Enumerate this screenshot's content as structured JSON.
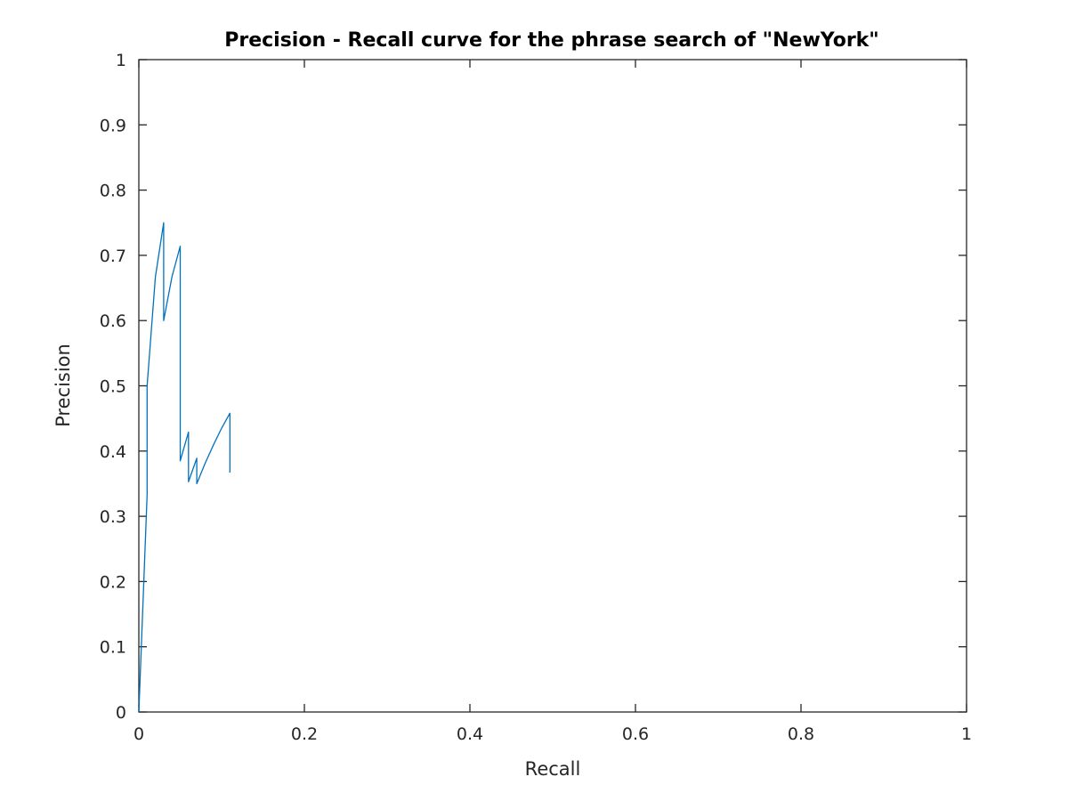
{
  "chart_data": {
    "type": "line",
    "title": "Precision - Recall curve for the phrase search of \"NewYork\"",
    "xlabel": "Recall",
    "ylabel": "Precision",
    "xlim": [
      0,
      1
    ],
    "ylim": [
      0,
      1
    ],
    "xticks": [
      0,
      0.2,
      0.4,
      0.6,
      0.8,
      1
    ],
    "xtick_labels": [
      "0",
      "0.2",
      "0.4",
      "0.6",
      "0.8",
      "1"
    ],
    "yticks": [
      0,
      0.1,
      0.2,
      0.3,
      0.4,
      0.5,
      0.6,
      0.7,
      0.8,
      0.9,
      1
    ],
    "ytick_labels": [
      "0",
      "0.1",
      "0.2",
      "0.3",
      "0.4",
      "0.5",
      "0.6",
      "0.7",
      "0.8",
      "0.9",
      "1"
    ],
    "grid": false,
    "line_color": "#0072BD",
    "series": [
      {
        "x": [
          0,
          0.01,
          0.01,
          0.02,
          0.03,
          0.03,
          0.04,
          0.05,
          0.05,
          0.06,
          0.06,
          0.07,
          0.07,
          0.08,
          0.09,
          0.1,
          0.11,
          0.11
        ],
        "y": [
          0,
          0.333,
          0.5,
          0.667,
          0.75,
          0.6,
          0.667,
          0.714,
          0.385,
          0.429,
          0.353,
          0.389,
          0.35,
          0.381,
          0.409,
          0.435,
          0.458,
          0.367
        ]
      }
    ]
  }
}
